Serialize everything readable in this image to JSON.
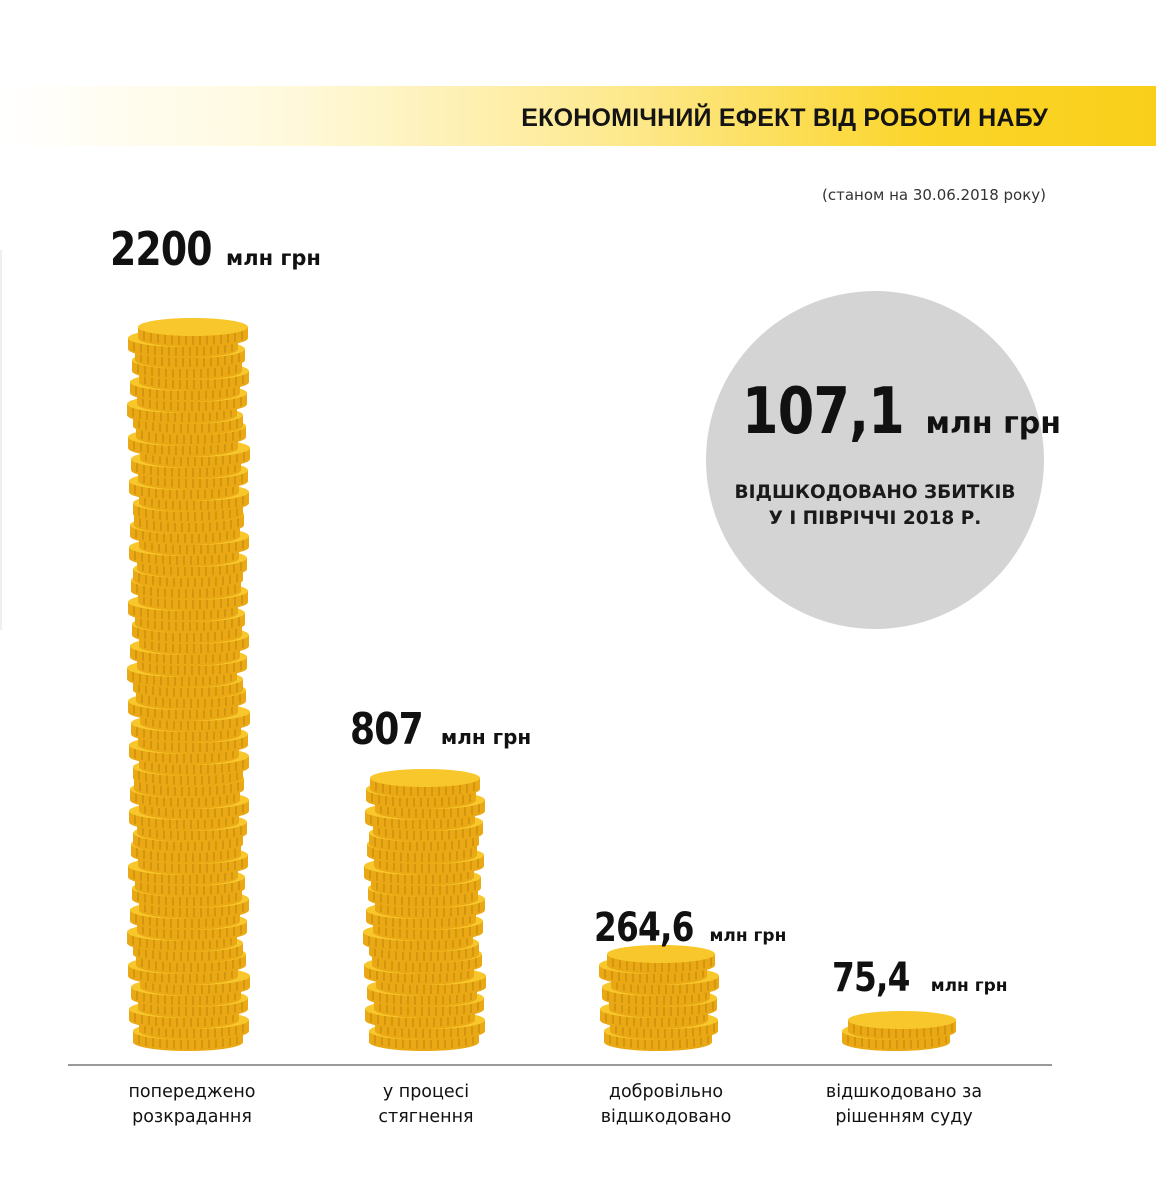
{
  "title": "ЕКОНОМІЧНИЙ ЕФЕКТ ВІД РОБОТИ НАБУ",
  "subtitle": "(станом на 30.06.2018 року)",
  "unit": "млн грн",
  "highlight": {
    "value": "107,1",
    "unit": "млн грн",
    "caption_line1": "ВІДШКОДОВАНО ЗБИТКІВ",
    "caption_line2": "У І ПІВРІЧЧІ 2018 Р."
  },
  "colors": {
    "coin_face": "#f7c72b",
    "coin_edge": "#e9a814",
    "coin_ridge": "#b77f0a",
    "band": "#f9cf1a",
    "circle": "#d4d4d4"
  },
  "chart_data": {
    "type": "bar",
    "categories": [
      "попереджено розкрадання",
      "у процесі стягнення",
      "добровільно відшкодовано",
      "відшкодовано за рішенням суду"
    ],
    "categories_lines": [
      [
        "попереджено",
        "розкрадання"
      ],
      [
        "у процесі",
        "стягнення"
      ],
      [
        "добровільно",
        "відшкодовано"
      ],
      [
        "відшкодовано за",
        "рішенням суду"
      ]
    ],
    "values": [
      2200,
      807,
      264.6,
      75.4
    ],
    "value_labels": [
      "2200",
      "807",
      "264,6",
      "75,4"
    ],
    "unit": "млн грн",
    "grid": false,
    "legend": "none"
  }
}
